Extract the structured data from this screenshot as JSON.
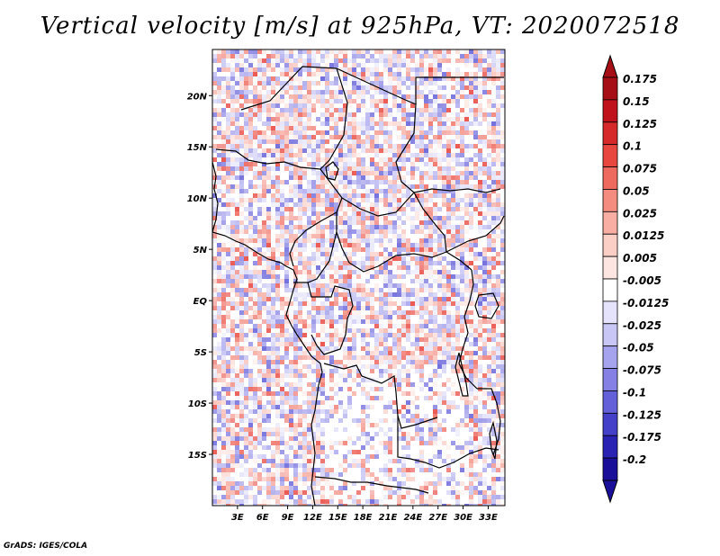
{
  "title": "Vertical velocity [m/s] at 925hPa, VT: 2020072518",
  "credit": "GrADS: IGES/COLA",
  "map": {
    "lon_labels": [
      "3E",
      "6E",
      "9E",
      "12E",
      "15E",
      "18E",
      "21E",
      "24E",
      "27E",
      "30E",
      "33E"
    ],
    "lat_labels": [
      "20N",
      "15N",
      "10N",
      "5N",
      "EQ",
      "5S",
      "10S",
      "15S"
    ],
    "lon_range": [
      0,
      35
    ],
    "lat_range": [
      -20,
      24.5
    ],
    "positive_color": "#d73027",
    "negative_color": "#3a3ad9"
  },
  "colorbar": {
    "labels": [
      "0.175",
      "0.15",
      "0.125",
      "0.1",
      "0.075",
      "0.05",
      "0.025",
      "0.0125",
      "0.005",
      "-0.005",
      "-0.0125",
      "-0.025",
      "-0.05",
      "-0.075",
      "-0.1",
      "-0.125",
      "-0.175",
      "-0.2"
    ],
    "colors": [
      "#a50f15",
      "#c0121a",
      "#d62a2a",
      "#e8473f",
      "#ef6a5e",
      "#f48d80",
      "#f8aea3",
      "#fbcec6",
      "#fde6e1",
      "#ffffff",
      "#e4e3fb",
      "#c8c6f5",
      "#a6a3ee",
      "#8581e4",
      "#6460d9",
      "#4540c9",
      "#2a22b3",
      "#1a0f99"
    ],
    "top_arrow_color": "#a50f15",
    "bottom_arrow_color": "#1a0f99"
  }
}
